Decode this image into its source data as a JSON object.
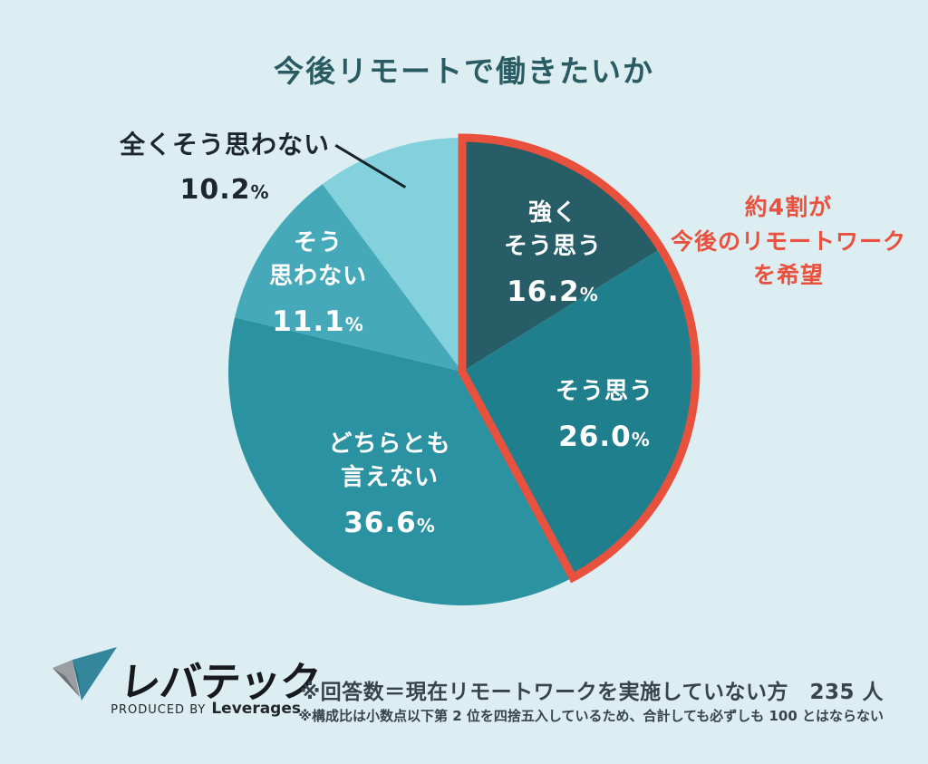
{
  "title": "今後リモートで働きたいか",
  "chart_data": {
    "type": "pie",
    "title": "今後リモートで働きたいか",
    "categories": [
      "強くそう思う",
      "そう思う",
      "どちらとも言えない",
      "そう思わない",
      "全くそう思わない"
    ],
    "values": [
      16.2,
      26.0,
      36.6,
      11.1,
      10.2
    ],
    "unit": "%",
    "colors": [
      "#265d66",
      "#207f8c",
      "#2a92a1",
      "#45a9b9",
      "#82d1dd"
    ],
    "start_angle_deg": -90,
    "direction": "clockwise",
    "legend": "none",
    "highlight": {
      "segment_indices": [
        0,
        1
      ],
      "outline_color": "#e8513d",
      "meaning": "約4割が今後のリモートワークを希望"
    }
  },
  "slices": [
    {
      "lines": [
        "強く",
        "そう思う"
      ],
      "value": "16.2",
      "unit": "%"
    },
    {
      "lines": [
        "そう思う"
      ],
      "value": "26.0",
      "unit": "%"
    },
    {
      "lines": [
        "どちらとも",
        "言えない"
      ],
      "value": "36.6",
      "unit": "%"
    },
    {
      "lines": [
        "そう",
        "思わない"
      ],
      "value": "11.1",
      "unit": "%"
    },
    {
      "lines": [
        "全くそう思わない"
      ],
      "value": "10.2",
      "unit": "%"
    }
  ],
  "annotation": {
    "text": "約4割が\n今後のリモートワーク\nを希望",
    "color": "#e8513d"
  },
  "logo": {
    "brand": "レバテック",
    "produced_by": "PRODUCED BY",
    "company": "Leverages"
  },
  "footnotes": {
    "line1": "※回答数＝現在リモートワークを実施していない方　235 人",
    "line2": "※構成比は小数点以下第 2 位を四捨五入しているため、合計しても必ずしも 100 とはならない"
  }
}
